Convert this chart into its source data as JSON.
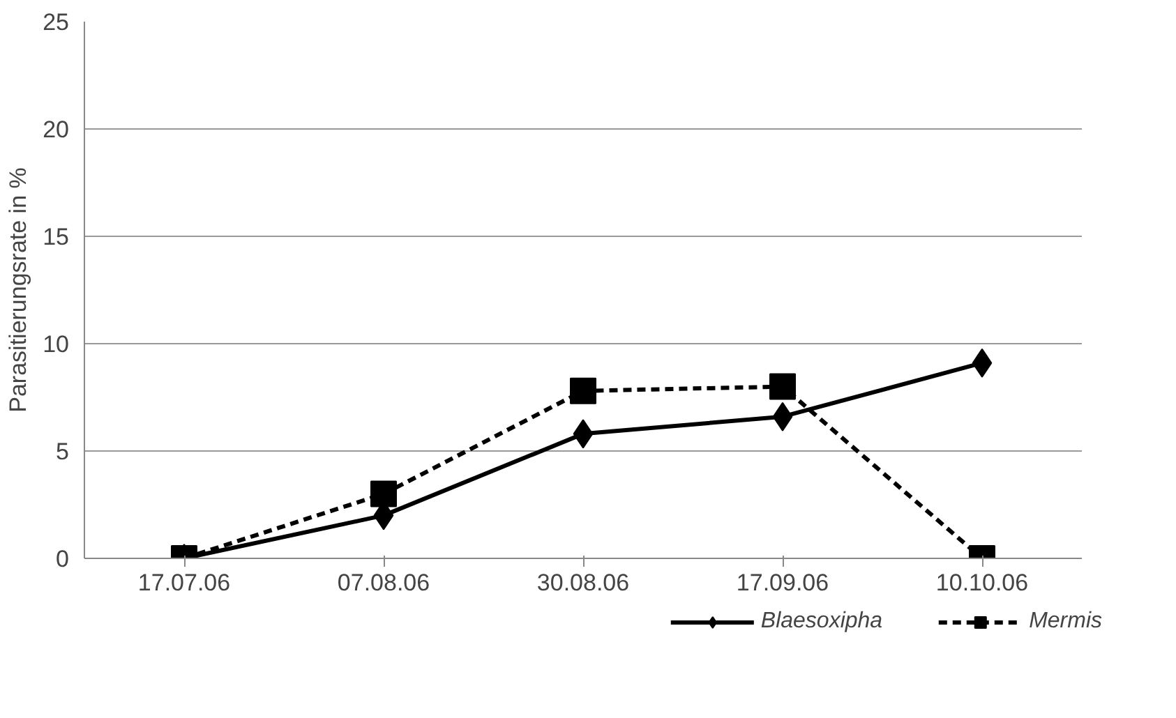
{
  "chart_data": {
    "type": "line",
    "ylabel": "Parasitierungsrate in %",
    "categories": [
      "17.07.06",
      "07.08.06",
      "30.08.06",
      "17.09.06",
      "10.10.06"
    ],
    "ylim": [
      0,
      25
    ],
    "yticks": [
      0,
      5,
      10,
      15,
      20,
      25
    ],
    "grid": "y",
    "legend": "bottom",
    "series": [
      {
        "name": "Blaesoxipha",
        "color": "#000000",
        "marker": "diamond",
        "line_style": "solid",
        "values": [
          0,
          2.0,
          5.8,
          6.6,
          9.1
        ]
      },
      {
        "name": "Mermis",
        "color": "#000000",
        "marker": "square",
        "line_style": "dashed",
        "values": [
          0,
          3.0,
          7.8,
          8.0,
          0
        ]
      }
    ]
  }
}
